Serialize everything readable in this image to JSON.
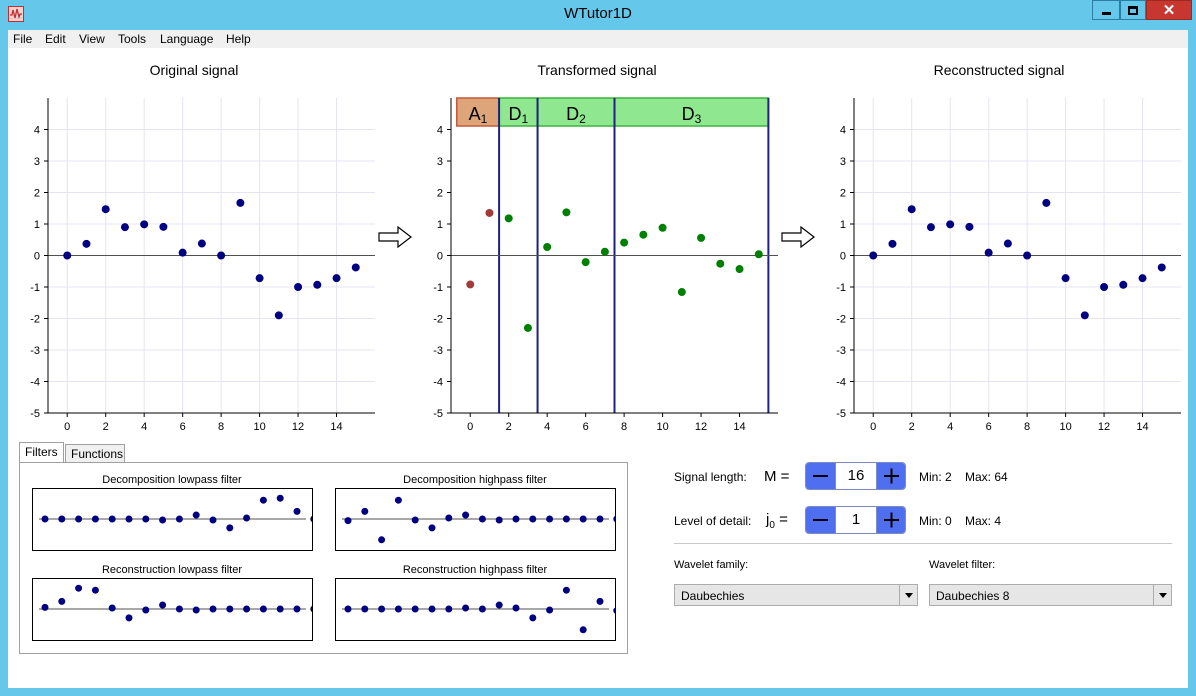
{
  "window": {
    "title": "WTutor1D",
    "accent": "#65c8eb"
  },
  "menu": [
    "File",
    "Edit",
    "View",
    "Tools",
    "Language",
    "Help"
  ],
  "plots": {
    "original_title": "Original signal",
    "transformed_title": "Transformed signal",
    "reconstructed_title": "Reconstructed signal"
  },
  "bands": [
    {
      "name": "A",
      "sub": "1"
    },
    {
      "name": "D",
      "sub": "1"
    },
    {
      "name": "D",
      "sub": "2"
    },
    {
      "name": "D",
      "sub": "3"
    }
  ],
  "chart_data": [
    {
      "type": "scatter",
      "title": "Original signal",
      "x": [
        0,
        1,
        2,
        3,
        4,
        5,
        6,
        7,
        8,
        9,
        10,
        11,
        12,
        13,
        14,
        15
      ],
      "y": [
        0,
        0.37,
        1.47,
        0.9,
        0.99,
        0.91,
        0.09,
        0.38,
        0.0,
        1.67,
        -0.72,
        -1.9,
        -1.0,
        -0.93,
        -0.72,
        -0.38
      ],
      "xticks": [
        0,
        2,
        4,
        6,
        8,
        10,
        12,
        14
      ],
      "yticks": [
        4,
        3,
        2,
        1,
        0,
        -1,
        -2,
        -3,
        -4,
        -5
      ],
      "xlim": [
        -1,
        16
      ],
      "ylim": [
        -5,
        5
      ],
      "grid": true,
      "color": "#000080"
    },
    {
      "type": "scatter",
      "title": "Transformed signal",
      "x": [
        0,
        1,
        2,
        3,
        4,
        5,
        6,
        7,
        8,
        9,
        10,
        11,
        12,
        13,
        14,
        15
      ],
      "y": [
        -0.92,
        1.35,
        1.18,
        -2.3,
        0.27,
        1.37,
        -0.21,
        0.12,
        0.41,
        0.66,
        0.88,
        -1.16,
        0.56,
        -0.26,
        -0.43,
        0.04
      ],
      "point_colors": [
        "#a33a3a",
        "#a33a3a",
        "#008000",
        "#008000",
        "#008000",
        "#008000",
        "#008000",
        "#008000",
        "#008000",
        "#008000",
        "#008000",
        "#008000",
        "#008000",
        "#008000",
        "#008000",
        "#008000"
      ],
      "xticks": [
        0,
        2,
        4,
        6,
        8,
        10,
        12,
        14
      ],
      "yticks": [
        4,
        3,
        2,
        1,
        0,
        -1,
        -2,
        -3,
        -4,
        -5
      ],
      "xlim": [
        -1,
        16
      ],
      "ylim": [
        -5,
        5
      ],
      "grid": false
    },
    {
      "type": "scatter",
      "title": "Reconstructed signal",
      "x": [
        0,
        1,
        2,
        3,
        4,
        5,
        6,
        7,
        8,
        9,
        10,
        11,
        12,
        13,
        14,
        15
      ],
      "y": [
        0,
        0.37,
        1.47,
        0.9,
        0.99,
        0.91,
        0.09,
        0.38,
        0.0,
        1.67,
        -0.72,
        -1.9,
        -1.0,
        -0.93,
        -0.72,
        -0.38
      ],
      "xticks": [
        0,
        2,
        4,
        6,
        8,
        10,
        12,
        14
      ],
      "yticks": [
        4,
        3,
        2,
        1,
        0,
        -1,
        -2,
        -3,
        -4,
        -5
      ],
      "xlim": [
        -1,
        16
      ],
      "ylim": [
        -5,
        5
      ],
      "grid": true,
      "color": "#000080"
    }
  ],
  "filters": {
    "tabs": [
      "Filters",
      "Functions"
    ],
    "active_tab": "Filters",
    "dec_low": {
      "title": "Decomposition lowpass filter",
      "values": [
        0,
        0,
        0,
        0,
        0,
        0,
        0,
        -0.03,
        0,
        0.12,
        -0.03,
        -0.27,
        0.03,
        0.57,
        0.63,
        0.23,
        0
      ]
    },
    "dec_high": {
      "title": "Decomposition highpass filter",
      "values": [
        -0.05,
        0.23,
        -0.63,
        0.57,
        -0.03,
        -0.27,
        0.03,
        0.12,
        0,
        -0.03,
        0,
        0,
        0,
        0,
        0,
        0,
        0
      ]
    },
    "rec_low": {
      "title": "Reconstruction lowpass filter",
      "values": [
        0.05,
        0.23,
        0.63,
        0.57,
        0.03,
        -0.27,
        -0.03,
        0.12,
        0,
        -0.03,
        0,
        0,
        0,
        0,
        0,
        0,
        0
      ]
    },
    "rec_high": {
      "title": "Reconstruction highpass filter",
      "values": [
        0,
        0,
        0,
        0,
        0,
        0,
        0,
        0.03,
        0,
        0.12,
        0.03,
        -0.27,
        -0.03,
        0.57,
        -0.63,
        0.23,
        -0.05
      ]
    }
  },
  "controls": {
    "signal_length_label": "Signal length:",
    "m_label": "M =",
    "m_value": "16",
    "m_min": "Min: 2",
    "m_max": "Max: 64",
    "detail_label": "Level of detail:",
    "j_label": "j",
    "j_sub": "0",
    "j_eq": "=",
    "j_value": "1",
    "j_min": "Min: 0",
    "j_max": "Max: 4",
    "family_label": "Wavelet family:",
    "family_value": "Daubechies",
    "filter_label": "Wavelet filter:",
    "filter_value": "Daubechies 8"
  }
}
